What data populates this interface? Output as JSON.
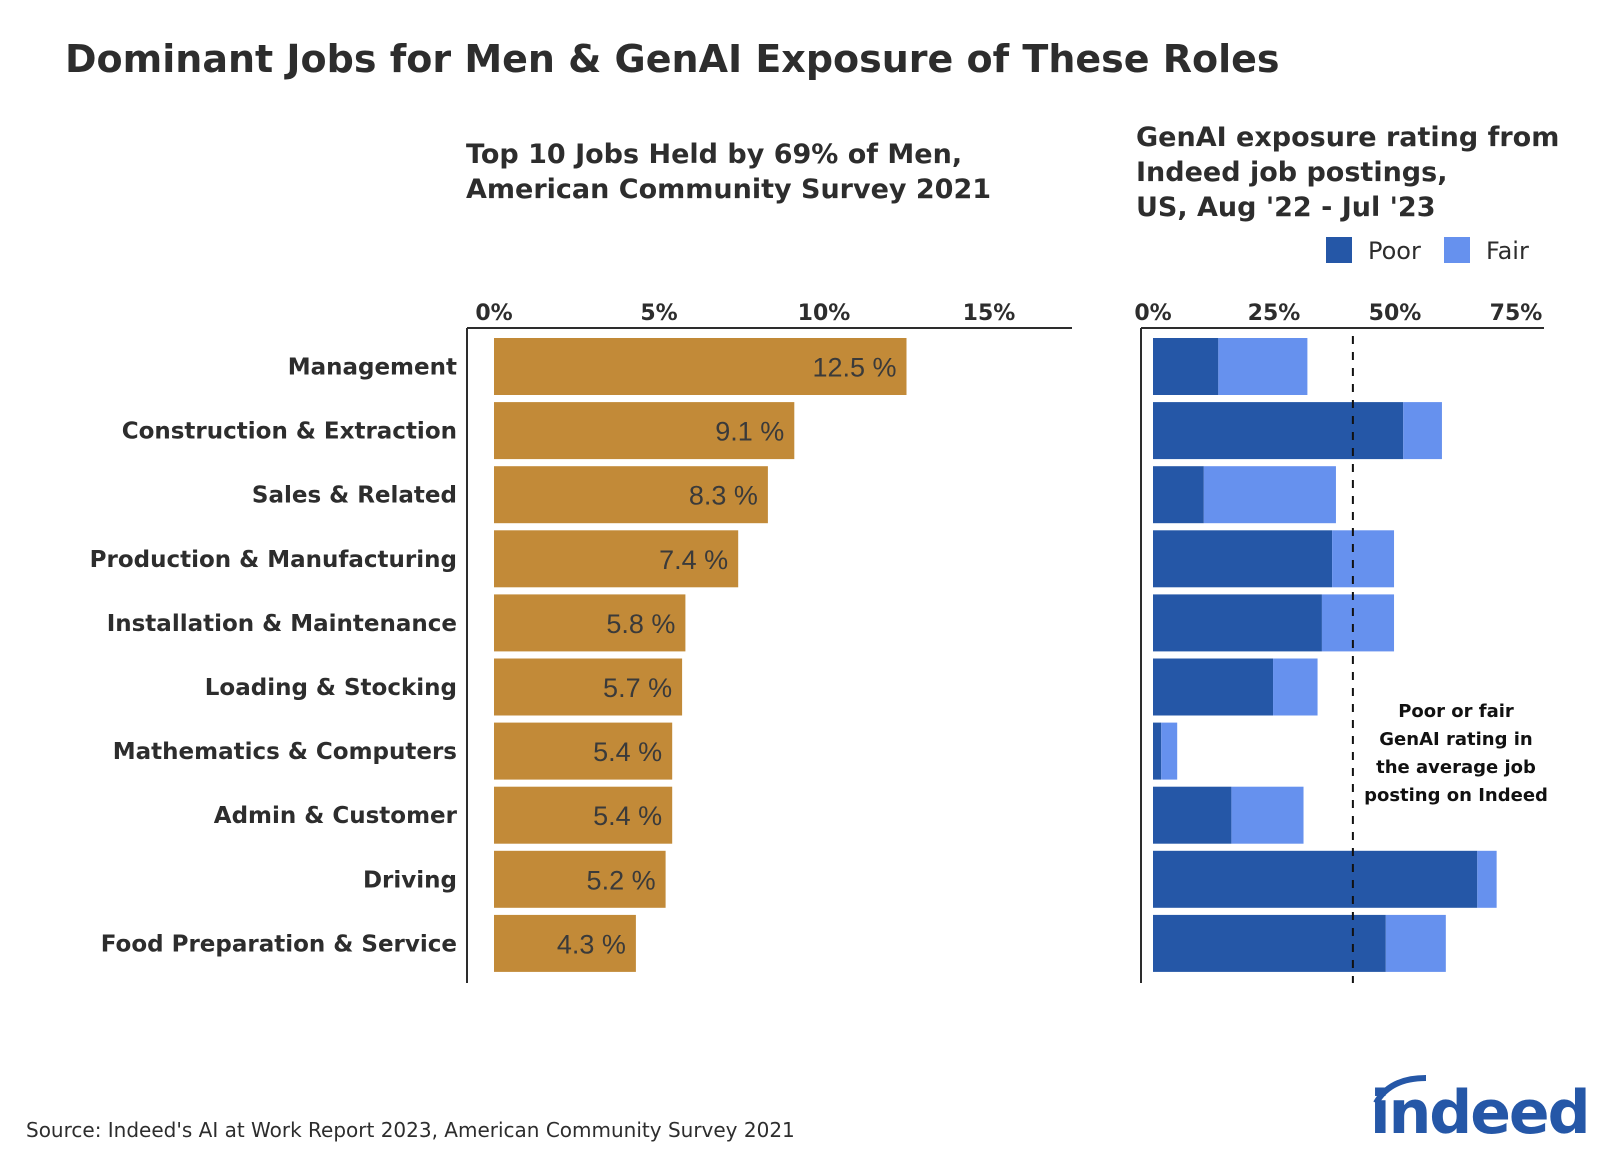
{
  "title": "Dominant Jobs for Men & GenAI Exposure of These Roles",
  "source": "Source: Indeed's AI at Work Report 2023, American Community Survey 2021",
  "logo": "indeed",
  "colors": {
    "share": "#c28a38",
    "poor": "#2557a7",
    "fair": "#6691ee",
    "text": "#2d2d2d"
  },
  "chart_data": [
    {
      "type": "bar",
      "orientation": "horizontal",
      "title": [
        "Top 10 Jobs Held by 69% of Men,",
        "American Community Survey 2021"
      ],
      "categories": [
        "Management",
        "Construction & Extraction",
        "Sales & Related",
        "Production & Manufacturing",
        "Installation & Maintenance",
        "Loading & Stocking",
        "Mathematics & Computers",
        "Admin & Customer",
        "Driving",
        "Food Preparation & Service"
      ],
      "values": [
        12.5,
        9.1,
        8.3,
        7.4,
        5.8,
        5.7,
        5.4,
        5.4,
        5.2,
        4.3
      ],
      "data_labels": [
        "12.5 %",
        "9.1 %",
        "8.3 %",
        "7.4 %",
        "5.8 %",
        "5.7 %",
        "5.4 %",
        "5.4 %",
        "5.2 %",
        "4.3 %"
      ],
      "xlim": [
        0,
        17
      ],
      "xticks": [
        0,
        5,
        10,
        15
      ],
      "xtick_labels": [
        "0%",
        "5%",
        "10%",
        "15%"
      ],
      "axis_position": "top",
      "grid": false
    },
    {
      "type": "bar",
      "orientation": "horizontal",
      "stacked": true,
      "title": [
        "GenAI exposure rating from",
        "Indeed job postings,",
        "US, Aug '22 - Jul '23"
      ],
      "categories": [
        "Management",
        "Construction & Extraction",
        "Sales & Related",
        "Production & Manufacturing",
        "Installation & Maintenance",
        "Loading & Stocking",
        "Mathematics & Computers",
        "Admin & Customer",
        "Driving",
        "Food Preparation & Service"
      ],
      "series": [
        {
          "name": "Poor",
          "values": [
            13.5,
            51.7,
            10.5,
            37.0,
            34.9,
            24.8,
            1.7,
            16.2,
            67.0,
            48.1
          ]
        },
        {
          "name": "Fair",
          "values": [
            18.4,
            8.0,
            27.3,
            12.8,
            14.9,
            9.2,
            3.3,
            14.9,
            4.0,
            12.4
          ]
        }
      ],
      "xlim": [
        0,
        78
      ],
      "xticks": [
        0,
        25,
        50,
        75
      ],
      "xtick_labels": [
        "0%",
        "25%",
        "50%",
        "75%"
      ],
      "axis_position": "top",
      "legend_position": "top-right",
      "reference_line": {
        "value": 41.3,
        "style": "dashed",
        "annotation": [
          "Poor or fair",
          "GenAI rating in",
          "the average job",
          "posting on Indeed"
        ]
      },
      "grid": false
    }
  ]
}
